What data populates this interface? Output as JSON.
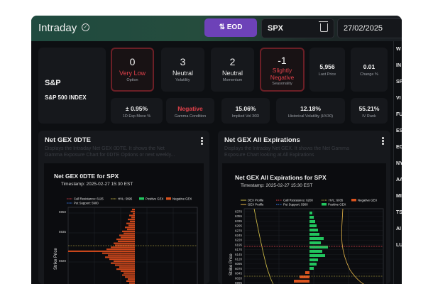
{
  "header": {
    "title": "Intraday",
    "eod_label": "EOD",
    "symbol_value": "SPX",
    "date_value": "27/02/2025"
  },
  "instrument": {
    "ticker": "S&P",
    "name": "S&P 500 INDEX"
  },
  "scores": [
    {
      "value": "0",
      "label": "Very Low",
      "caption": "Option",
      "highlight": true
    },
    {
      "value": "3",
      "label": "Neutral",
      "caption": "Volatility",
      "highlight": false
    },
    {
      "value": "2",
      "label": "Neutral",
      "caption": "Momentum",
      "highlight": false
    },
    {
      "value": "-1",
      "label": "Slightly Negative",
      "caption": "Seasonality",
      "highlight": true
    }
  ],
  "last_price": {
    "value": "5,956",
    "label": "Last Price"
  },
  "change": {
    "value": "0.01",
    "label": "Change %"
  },
  "metrics": [
    {
      "value": "± 0.95%",
      "label": "1D Exp Move %"
    },
    {
      "value": "Negative",
      "label": "Gamma Condition"
    },
    {
      "value": "15.06%",
      "label": "Implied Vol 30D"
    },
    {
      "value": "12.18%",
      "label": "Historical Volatility (HV30)"
    },
    {
      "value": "55.21%",
      "label": "IV Rank"
    }
  ],
  "panels": [
    {
      "title": "Net GEX 0DTE",
      "description": "Displays the Intraday Net GEX 0DTE. It shows the Net Gamma Exposure Chart for 0DTE Options or next weekly...",
      "chart_title": "Net GEX 0DTE for SPX",
      "timestamp": "Timestamp: 2025-02-27 15:30 EST",
      "legend": [
        "Call Resistance: 6125",
        "HVL: 5995",
        "Positive GEX",
        "Negative GEX",
        "Put Support: 5900"
      ],
      "ylabel": "Strike Price",
      "ticks": [
        "5950",
        "5935",
        "5920"
      ]
    },
    {
      "title": "Net GEX All Expirations",
      "description": "Displays the Intraday Net GEX. It shows the Net Gamma Exposure Chart looking at All Expirations",
      "chart_title": "Net GEX All Expirations for SPX",
      "timestamp": "Timestamp: 2025-02-27 15:30 EST",
      "legend": [
        "DEX Profile",
        "Call Resistance: 6200",
        "HVL: 6035",
        "Negative GEX",
        "GEX Profile",
        "Put Support: 5900",
        "Positive GEX"
      ],
      "ylabel": "Strike Price",
      "ticks": [
        "6370",
        "6355",
        "6335",
        "6295",
        "6270",
        "6245",
        "6220",
        "6195",
        "6170",
        "6145",
        "6120",
        "6095",
        "6070",
        "6045",
        "6020",
        "5995"
      ]
    }
  ],
  "sidebar_letters": [
    "W",
    "IN",
    "SP",
    "VI",
    "FU",
    "ES",
    "EC",
    "NY",
    "AA",
    "MI",
    "TS",
    "AI",
    "LU"
  ],
  "colors": {
    "accent": "#6d42b8",
    "negative": "#e0404a",
    "positive_gex": "#22c55e",
    "negative_gex": "#d9531e"
  },
  "icons": {
    "title_check": "check-circle-icon",
    "eod": "swap-icon",
    "symbol_clear": "trash-icon",
    "menu": "kebab-icon"
  }
}
